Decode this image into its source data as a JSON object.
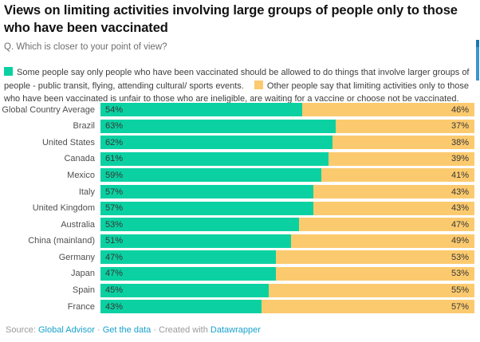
{
  "header": {
    "title": "Views on limiting activities involving large groups of people only to those who have been vaccinated",
    "subtitle": "Q. Which is closer to your point of view?"
  },
  "legend": {
    "series1_label": "Some people say only people who have been vaccinated should be allowed to do things that involve larger groups of people - public transit, flying, attending cultural/ sports events.",
    "series2_label": "Other people say that limiting activities only to those who have been vaccinated is unfair to those who are ineligible, are waiting for a vaccine or choose not be vaccinated."
  },
  "colors": {
    "series1": "#0bd1a2",
    "series2": "#fcca6e",
    "link": "#18a1cd"
  },
  "chart_data": {
    "type": "bar",
    "stacked": true,
    "orientation": "horizontal",
    "title": "Views on limiting activities involving large groups of people only to those who have been vaccinated",
    "subtitle": "Q. Which is closer to your point of view?",
    "value_suffix": "%",
    "xlim": [
      0,
      100
    ],
    "grid": false,
    "legend_position": "top",
    "categories": [
      "Global Country Average",
      "Brazil",
      "United States",
      "Canada",
      "Mexico",
      "Italy",
      "United Kingdom",
      "Australia",
      "China (mainland)",
      "Germany",
      "Japan",
      "Spain",
      "France"
    ],
    "series": [
      {
        "name": "Some people say only people who have been vaccinated should be allowed to do things that involve larger groups of people - public transit, flying, attending cultural/ sports events.",
        "color": "#0bd1a2",
        "values": [
          54,
          63,
          62,
          61,
          59,
          57,
          57,
          53,
          51,
          47,
          47,
          45,
          43
        ]
      },
      {
        "name": "Other people say that limiting activities only to those who have been vaccinated is unfair to those who are ineligible, are waiting for a vaccine or choose not be vaccinated.",
        "color": "#fcca6e",
        "values": [
          46,
          37,
          38,
          39,
          41,
          43,
          43,
          47,
          49,
          53,
          53,
          55,
          57
        ]
      }
    ]
  },
  "footer": {
    "source_prefix": "Source:",
    "source_link": "Global Advisor",
    "separator1": "·",
    "data_link": "Get the data",
    "separator2": "·",
    "created_with": "Created with",
    "tool_link": "Datawrapper"
  }
}
